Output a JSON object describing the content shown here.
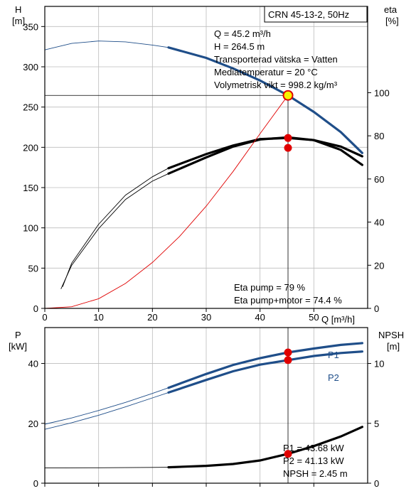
{
  "colors": {
    "blue": "#1f4e89",
    "red": "#e00000",
    "black": "#000000",
    "marker_yellow": "#f7f300"
  },
  "chart_data": [
    {
      "type": "line",
      "title": "CRN 45-13-2, 50Hz",
      "xlabel": "Q [m³/h]",
      "ylabel_left": "H",
      "ylabel_left_unit": "[m]",
      "ylabel_right": "eta",
      "ylabel_right_unit": "[%]",
      "xlim": [
        0,
        60
      ],
      "ylim_left": [
        0,
        375
      ],
      "ylim_right": [
        0,
        140
      ],
      "x_ticks": [
        0,
        10,
        20,
        30,
        40,
        50
      ],
      "y_left_ticks": [
        0,
        50,
        100,
        150,
        200,
        250,
        300,
        350
      ],
      "y_right_ticks": [
        0,
        20,
        40,
        60,
        80,
        100
      ],
      "grid": true,
      "series": [
        {
          "axis": "left",
          "color": "#1f4e89",
          "thin": [
            [
              0,
              321
            ],
            [
              5,
              329
            ],
            [
              10,
              332
            ],
            [
              15,
              331
            ],
            [
              20,
              327
            ],
            [
              23,
              324
            ]
          ],
          "thick": [
            [
              23,
              324
            ],
            [
              30,
              311
            ],
            [
              35,
              298
            ],
            [
              40,
              283
            ],
            [
              45.2,
              264.5
            ],
            [
              50,
              244
            ],
            [
              55,
              219
            ],
            [
              59,
              193
            ]
          ]
        },
        {
          "axis": "right",
          "color": "#000000",
          "thin": [
            [
              3,
              9
            ],
            [
              5,
              20
            ],
            [
              10,
              37
            ],
            [
              15,
              50.5
            ],
            [
              20,
              59
            ],
            [
              23,
              62.5
            ]
          ],
          "thick": [
            [
              23,
              62.5
            ],
            [
              30,
              70
            ],
            [
              35,
              75
            ],
            [
              40,
              78.3
            ],
            [
              45.2,
              79.3
            ],
            [
              50,
              78
            ],
            [
              55,
              73.5
            ],
            [
              59,
              66.5
            ]
          ]
        },
        {
          "axis": "right",
          "color": "#000000",
          "thin": [
            [
              3.3,
              10
            ],
            [
              5,
              21
            ],
            [
              10,
              39
            ],
            [
              15,
              52.5
            ],
            [
              20,
              61
            ],
            [
              23,
              65
            ]
          ],
          "thick": [
            [
              23,
              65
            ],
            [
              30,
              71.5
            ],
            [
              35,
              75.5
            ],
            [
              40,
              78.5
            ],
            [
              45.2,
              79
            ],
            [
              50,
              78
            ],
            [
              55,
              75
            ],
            [
              59,
              70.5
            ]
          ]
        },
        {
          "axis": "left",
          "color": "#e00000",
          "thin": [
            [
              0,
              0
            ],
            [
              5,
              2
            ],
            [
              10,
              12
            ],
            [
              15,
              31
            ],
            [
              20,
              57
            ],
            [
              25,
              89
            ],
            [
              30,
              127
            ],
            [
              35,
              170
            ],
            [
              40,
              217
            ],
            [
              45.2,
              264.5
            ]
          ]
        }
      ],
      "operating_point": {
        "x": 45.2,
        "y": 264.5
      },
      "eta_points": [
        79,
        74.4
      ],
      "info_box": {
        "lines": [
          "Q = 45.2 m³/h",
          "H = 264.5 m",
          "Transporterad vätska = Vatten",
          "Mediatemperatur = 20 °C",
          "Volymetrisk vikt = 998.2 kg/m³"
        ]
      },
      "eta_box": {
        "lines": [
          "Eta pump = 79 %",
          "Eta pump+motor = 74.4 %"
        ]
      }
    },
    {
      "type": "line",
      "ylabel_left": "P",
      "ylabel_left_unit": "[kW]",
      "ylabel_right": "NPSH",
      "ylabel_right_unit": "[m]",
      "xlim": [
        0,
        60
      ],
      "ylim_left": [
        0,
        52
      ],
      "ylim_right": [
        0,
        13
      ],
      "y_left_ticks": [
        0,
        20,
        40
      ],
      "y_right_ticks": [
        0,
        5,
        10
      ],
      "grid": true,
      "series": [
        {
          "name": "P1",
          "axis": "left",
          "color": "#1f4e89",
          "thin": [
            [
              0,
              19.7
            ],
            [
              5,
              21.8
            ],
            [
              10,
              24.3
            ],
            [
              15,
              27
            ],
            [
              20,
              30
            ],
            [
              23,
              31.9
            ]
          ],
          "thick": [
            [
              23,
              31.9
            ],
            [
              30,
              36.5
            ],
            [
              35,
              39.5
            ],
            [
              40,
              41.8
            ],
            [
              45.2,
              43.68
            ],
            [
              50,
              45
            ],
            [
              55,
              46.2
            ],
            [
              59,
              46.8
            ]
          ]
        },
        {
          "name": "P2",
          "axis": "left",
          "color": "#1f4e89",
          "thin": [
            [
              0,
              18
            ],
            [
              5,
              20.2
            ],
            [
              10,
              22.7
            ],
            [
              15,
              25.5
            ],
            [
              20,
              28.5
            ],
            [
              23,
              30.3
            ]
          ],
          "thick": [
            [
              23,
              30.3
            ],
            [
              30,
              34.5
            ],
            [
              35,
              37.4
            ],
            [
              40,
              39.6
            ],
            [
              45.2,
              41.13
            ],
            [
              50,
              42.5
            ],
            [
              55,
              43.5
            ],
            [
              59,
              44
            ]
          ]
        },
        {
          "axis": "right",
          "color": "#000000",
          "thin": [
            [
              0,
              1.27
            ],
            [
              10,
              1.29
            ],
            [
              20,
              1.32
            ],
            [
              23,
              1.33
            ]
          ],
          "thick": [
            [
              23,
              1.33
            ],
            [
              30,
              1.45
            ],
            [
              35,
              1.6
            ],
            [
              40,
              1.9
            ],
            [
              45.2,
              2.45
            ],
            [
              50,
              3.1
            ],
            [
              55,
              3.9
            ],
            [
              59,
              4.7
            ]
          ]
        }
      ],
      "points_left": [
        43.68,
        41.13
      ],
      "points_right": [
        2.45
      ],
      "info_box": {
        "lines": [
          "P1 = 43.68 kW",
          "P2 = 41.13 kW",
          "NPSH = 2.45 m"
        ]
      }
    }
  ]
}
